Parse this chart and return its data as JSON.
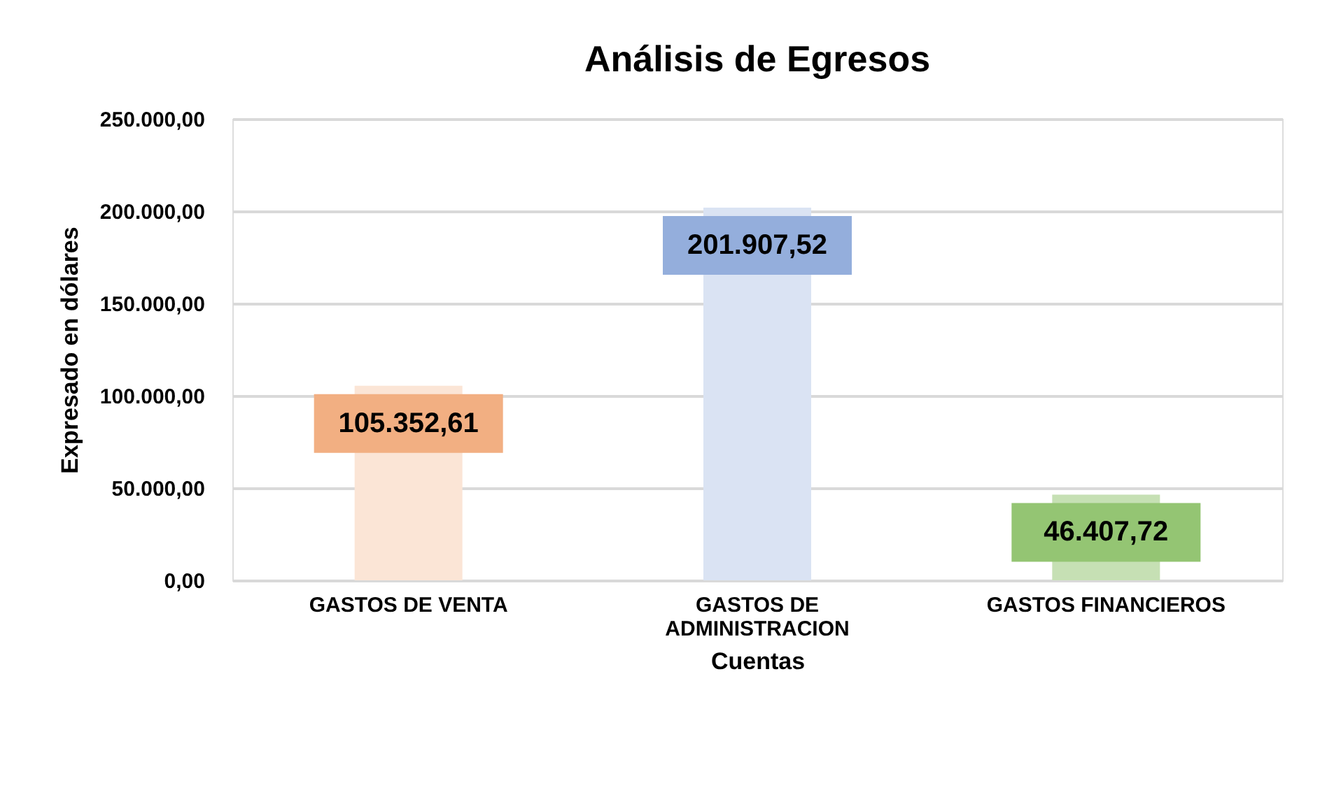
{
  "chart_data": {
    "type": "bar",
    "title": "Análisis de Egresos",
    "xlabel": "Cuentas",
    "ylabel": "Expresado en dólares",
    "categories": [
      "GASTOS DE VENTA",
      "GASTOS DE ADMINISTRACION",
      "GASTOS FINANCIEROS"
    ],
    "values": [
      105352.61,
      201907.52,
      46407.72
    ],
    "colors": [
      "#fbe5d6",
      "#dae3f3",
      "#c6e0b4"
    ],
    "value_labels": [
      "105.352,61",
      "201.907,52",
      "46.407,72"
    ],
    "ylim": [
      0,
      250000
    ],
    "yticks": [
      {
        "value": 0,
        "label": "0,00"
      },
      {
        "value": 50000,
        "label": "50.000,00"
      },
      {
        "value": 100000,
        "label": "100.000,00"
      },
      {
        "value": 150000,
        "label": "150.000,00"
      },
      {
        "value": 200000,
        "label": "200.000,00"
      },
      {
        "value": 250000,
        "label": "250.000,00"
      }
    ],
    "grid": "y"
  }
}
